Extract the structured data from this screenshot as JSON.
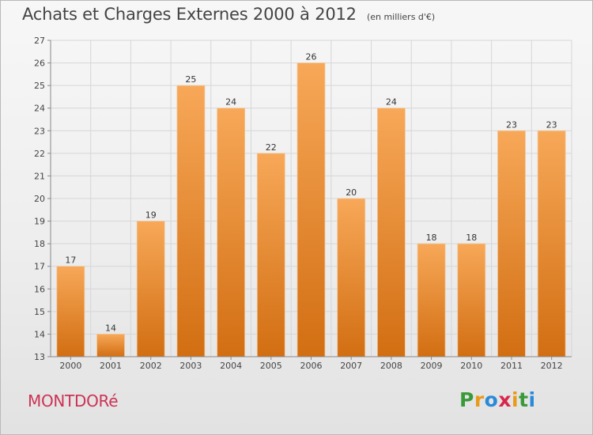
{
  "title": "Achats et Charges Externes 2000 à 2012",
  "subtitle": "(en milliers d'€)",
  "town": "MONTDORé",
  "logo": {
    "letters": [
      "P",
      "r",
      "o",
      "x",
      "i",
      "t",
      "i"
    ],
    "colors": [
      "#3a9a3a",
      "#e89a1c",
      "#2a8ad8",
      "#d8264a",
      "#e89a1c",
      "#3a9a3a",
      "#2a8ad8"
    ]
  },
  "colors": {
    "bar_top": "#f7a858",
    "bar_bottom": "#d26e12",
    "title": "#444444",
    "town": "#cc3355"
  },
  "chart_data": {
    "type": "bar",
    "categories": [
      "2000",
      "2001",
      "2002",
      "2003",
      "2004",
      "2005",
      "2006",
      "2007",
      "2008",
      "2009",
      "2010",
      "2011",
      "2012"
    ],
    "values": [
      17,
      14,
      19,
      25,
      24,
      22,
      26,
      20,
      24,
      18,
      18,
      23,
      23
    ],
    "ylim": [
      13,
      27
    ],
    "yticks": [
      13,
      14,
      15,
      16,
      17,
      18,
      19,
      20,
      21,
      22,
      23,
      24,
      25,
      26,
      27
    ],
    "grid": true,
    "data_labels": true
  }
}
